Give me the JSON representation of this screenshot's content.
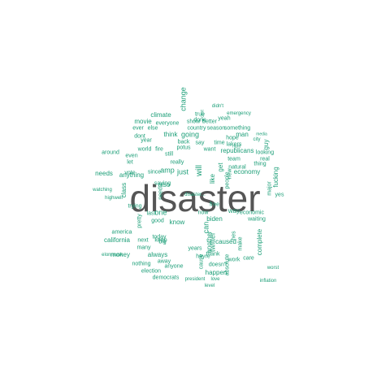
{
  "colors": {
    "main": "#555555",
    "words": "#1b9e77",
    "background": "#ffffff"
  },
  "wordcloud": {
    "main_word": "disaster",
    "words": [
      "change",
      "twitter",
      "emergency",
      "didn't",
      "climate",
      "man",
      "media",
      "right",
      "movie",
      "everyone",
      "show",
      "better",
      "season",
      "something",
      "city",
      "guy",
      "ever",
      "else",
      "country",
      "time",
      "lakers",
      "republicans",
      "say",
      "also",
      "world",
      "potus",
      "want",
      "really",
      "year",
      "going",
      "think",
      "back",
      "amp",
      "just",
      "one",
      "will",
      "know",
      "biden",
      "now",
      "way",
      "economic",
      "like",
      "people",
      "get",
      "can",
      "good",
      "new",
      "need",
      "hope",
      "team",
      "real",
      "major",
      "fucking",
      "needs",
      "anything",
      "california",
      "america",
      "money",
      "always",
      "democrats",
      "election",
      "happen",
      "doesn't",
      "caused",
      "make",
      "complete",
      "last",
      "pretty",
      "today",
      "thank",
      "next",
      "big",
      "years",
      "another",
      "away",
      "cant",
      "many",
      "true",
      "done",
      "yeah",
      "fire",
      "natural",
      "thing",
      "looking",
      "nothing",
      "watching",
      "trying",
      "cause",
      "absolute",
      "anyone",
      "care",
      "work",
      "hes",
      "free",
      "let",
      "even",
      "vote",
      "since",
      "dont",
      "still",
      "around",
      "class",
      "economy",
      "highwell",
      "saying",
      "keep",
      "elonmusk",
      "waiting",
      "heyre",
      "yes",
      "worst",
      "inflation",
      "president",
      "love",
      "level",
      "disaster..."
    ]
  }
}
